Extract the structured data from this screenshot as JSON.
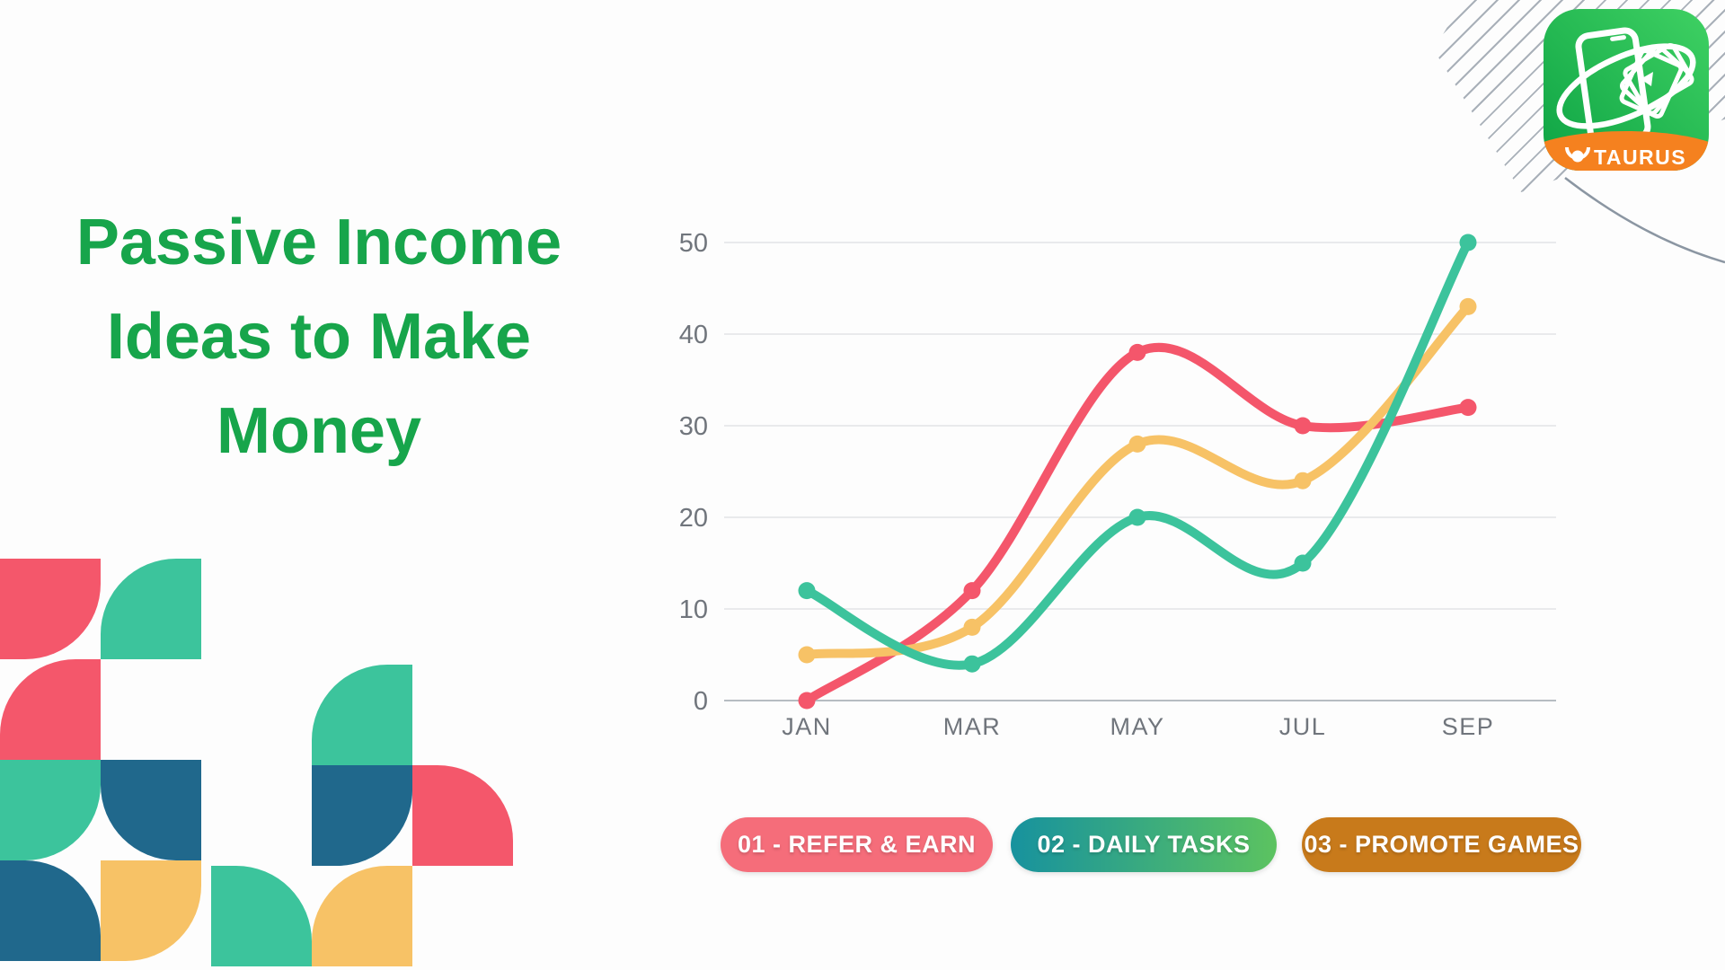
{
  "page": {
    "background": "#fdfdfd"
  },
  "title": {
    "lines": [
      "Passive Income",
      "Ideas to Make",
      "Money"
    ],
    "color": "#17a54b"
  },
  "logo": {
    "app_name": "TAURUS",
    "badge_text": "TAURUS",
    "colors": {
      "green_light": "#3fd163",
      "green_dark": "#0da344",
      "orange_band": "#f5811f"
    }
  },
  "chart_data": {
    "type": "line",
    "categories": [
      "JAN",
      "MAR",
      "MAY",
      "JUL",
      "SEP"
    ],
    "series": [
      {
        "name": "01 - REFER & EARN",
        "color": "#f4566b",
        "values": [
          0,
          12,
          38,
          30,
          32
        ]
      },
      {
        "name": "03 - PROMOTE GAMES",
        "color": "#f7c266",
        "values": [
          5,
          8,
          28,
          24,
          43
        ]
      },
      {
        "name": "02 - DAILY TASKS",
        "color": "#3cc39c",
        "values": [
          12,
          4,
          20,
          15,
          50
        ]
      }
    ],
    "title": "",
    "xlabel": "",
    "ylabel": "",
    "ylim": [
      0,
      50
    ],
    "yticks": [
      0,
      10,
      20,
      30,
      40,
      50
    ],
    "grid": true,
    "legend_position": "bottom",
    "smooth": true
  },
  "legend": {
    "items": [
      {
        "label": "01 - REFER & EARN",
        "bg": "#f56d7a"
      },
      {
        "label": "02 - DAILY TASKS",
        "bg": "#17929e",
        "bg_end": "#5cc360"
      },
      {
        "label": "03 - PROMOTE GAMES",
        "bg": "#c87a1b"
      }
    ]
  },
  "decor": {
    "colors": {
      "red": "#f4576b",
      "teal": "#3cc49c",
      "blue": "#20688c",
      "yellow": "#f7c266"
    }
  }
}
